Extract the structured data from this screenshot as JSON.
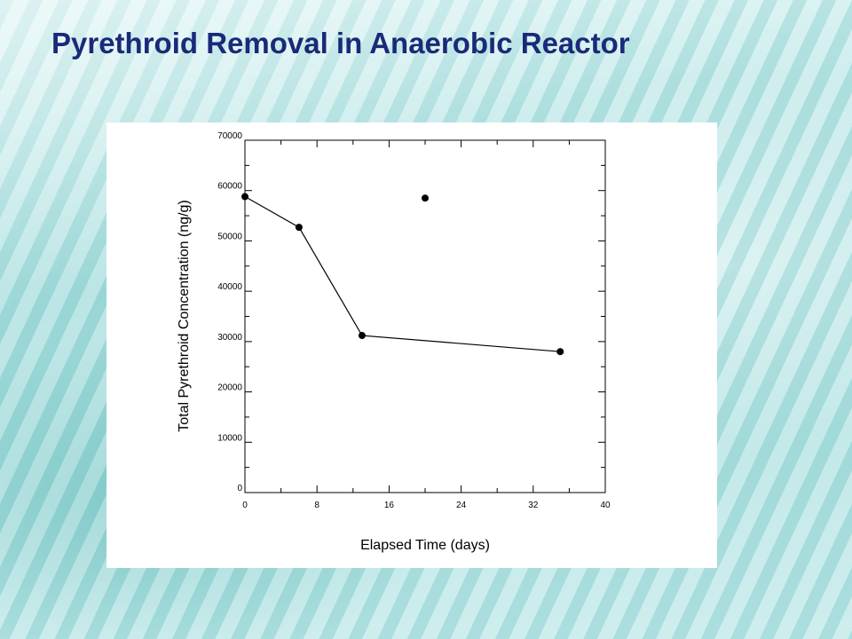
{
  "slide": {
    "title": "Pyrethroid Removal in Anaerobic Reactor"
  },
  "chart_data": {
    "type": "scatter",
    "xlabel": "Elapsed Time (days)",
    "ylabel": "Total Pyrethroid Concentration (ng/g)",
    "xlim": [
      0,
      40
    ],
    "ylim": [
      0,
      70000
    ],
    "x_ticks": [
      0,
      8,
      16,
      24,
      32,
      40
    ],
    "y_ticks": [
      0,
      10000,
      20000,
      30000,
      40000,
      50000,
      60000,
      70000
    ],
    "grid": false,
    "series": [
      {
        "points": [
          {
            "x": 0,
            "y": 58800
          },
          {
            "x": 6,
            "y": 52700
          },
          {
            "x": 13,
            "y": 31200
          },
          {
            "x": 35,
            "y": 28000
          }
        ],
        "connected": true,
        "marker": "filled-circle",
        "color": "#000000"
      },
      {
        "points": [
          {
            "x": 20,
            "y": 58500
          }
        ],
        "connected": false,
        "marker": "filled-circle",
        "color": "#000000"
      }
    ]
  }
}
